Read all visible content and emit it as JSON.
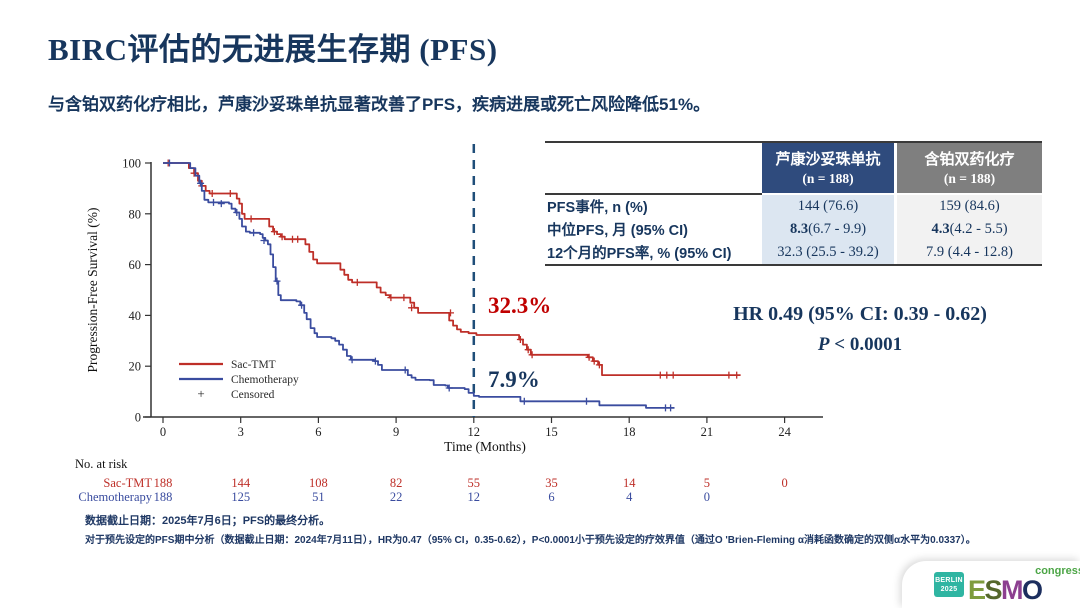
{
  "slide": {
    "title": "BIRC评估的无进展生存期 (PFS)",
    "subtitle": "与含铂双药化疗相比，芦康沙妥珠单抗显著改善了PFS，疾病进展或死亡风险降低51%。",
    "hr_line": "HR 0.49 (95% CI: 0.39 - 0.62)",
    "p_prefix": "P",
    "p_rest": " < 0.0001",
    "footnote1": "数据截止日期：2025年7月6日；PFS的最终分析。",
    "footnote2": "对于预先设定的PFS期中分析（数据截止日期：2024年7月11日），HR为0.47（95% CI，0.35-0.62），P<0.0001小于预先设定的疗效界值（通过O 'Brien-Fleming α消耗函数确定的双侧α水平为0.0337）。"
  },
  "summary_table": {
    "col_sac_header_line1": "芦康沙妥珠单抗",
    "col_sac_header_line2": "(n = 188)",
    "col_chemo_header_line1": "含铂双药化疗",
    "col_chemo_header_line2": "(n = 188)",
    "rows": [
      {
        "label": "PFS事件, n (%)",
        "sac_bold": "",
        "sac_rest": "144 (76.6)",
        "chemo_bold": "",
        "chemo_rest": "159 (84.6)"
      },
      {
        "label": "中位PFS, 月 (95% CI)",
        "sac_bold": "8.3",
        "sac_rest": " (6.7 - 9.9)",
        "chemo_bold": "4.3",
        "chemo_rest": " (4.2 - 5.5)"
      },
      {
        "label": "12个月的PFS率, % (95% CI)",
        "sac_bold": "",
        "sac_rest": "32.3 (25.5 - 39.2)",
        "chemo_bold": "",
        "chemo_rest": "7.9 (4.4 - 12.8)"
      }
    ]
  },
  "chart_data": {
    "type": "line",
    "subtype": "kaplan-meier-step",
    "xlabel": "Time (Months)",
    "ylabel": "Progression-Free Survival (%)",
    "xlim": [
      0,
      25
    ],
    "xticks": [
      0,
      3,
      6,
      9,
      12,
      15,
      18,
      21,
      24
    ],
    "ylim": [
      0,
      100
    ],
    "yticks": [
      0,
      20,
      40,
      60,
      80,
      100
    ],
    "grid": false,
    "landmark_line": {
      "x": 12,
      "style": "dashed",
      "color": "#1F4E79"
    },
    "annotations": [
      {
        "text": "32.3%",
        "color": "#C00000",
        "series": "Sac-TMT",
        "at_month": 12
      },
      {
        "text": "7.9%",
        "color": "#17365D",
        "series": "Chemotherapy",
        "at_month": 12
      }
    ],
    "legend": {
      "position": "lower-left-inside",
      "entries": [
        "Sac-TMT",
        "Chemotherapy",
        "Censored"
      ]
    },
    "series": [
      {
        "name": "Sac-TMT",
        "color": "#BE2F28",
        "points": [
          [
            0,
            100
          ],
          [
            0.85,
            100
          ],
          [
            1.0,
            98
          ],
          [
            1.2,
            96
          ],
          [
            1.35,
            93
          ],
          [
            1.5,
            91
          ],
          [
            1.65,
            89
          ],
          [
            1.8,
            88
          ],
          [
            2.7,
            88
          ],
          [
            2.85,
            86
          ],
          [
            2.95,
            84
          ],
          [
            3.05,
            80
          ],
          [
            3.15,
            78
          ],
          [
            3.95,
            78
          ],
          [
            4.1,
            75
          ],
          [
            4.25,
            73
          ],
          [
            4.4,
            72
          ],
          [
            4.55,
            71
          ],
          [
            4.7,
            70
          ],
          [
            5.35,
            70
          ],
          [
            5.5,
            68
          ],
          [
            5.65,
            65
          ],
          [
            5.8,
            62
          ],
          [
            5.95,
            60.5
          ],
          [
            6.7,
            60.5
          ],
          [
            6.85,
            58
          ],
          [
            7.0,
            56
          ],
          [
            7.15,
            54
          ],
          [
            7.3,
            53
          ],
          [
            8.1,
            53
          ],
          [
            8.25,
            51
          ],
          [
            8.4,
            49
          ],
          [
            8.6,
            48
          ],
          [
            8.75,
            47
          ],
          [
            9.4,
            47
          ],
          [
            9.55,
            45
          ],
          [
            9.7,
            43
          ],
          [
            9.85,
            41
          ],
          [
            10.9,
            41
          ],
          [
            11.05,
            38
          ],
          [
            11.2,
            36
          ],
          [
            11.35,
            34.5
          ],
          [
            11.5,
            33.5
          ],
          [
            11.8,
            33
          ],
          [
            12.1,
            32.3
          ],
          [
            13.6,
            32.3
          ],
          [
            13.75,
            30.5
          ],
          [
            13.9,
            28.5
          ],
          [
            14.05,
            26.5
          ],
          [
            14.2,
            24.5
          ],
          [
            16.2,
            24.5
          ],
          [
            16.4,
            23.5
          ],
          [
            16.6,
            22
          ],
          [
            16.8,
            20.5
          ],
          [
            16.95,
            16.5
          ],
          [
            22.3,
            16.5
          ]
        ],
        "censored": [
          [
            0.2,
            100
          ],
          [
            1.2,
            96
          ],
          [
            1.5,
            91
          ],
          [
            1.9,
            88
          ],
          [
            2.6,
            88
          ],
          [
            3.4,
            78
          ],
          [
            4.3,
            73
          ],
          [
            4.6,
            71
          ],
          [
            5.0,
            70
          ],
          [
            5.2,
            70
          ],
          [
            7.5,
            53
          ],
          [
            8.8,
            47
          ],
          [
            9.3,
            47
          ],
          [
            9.6,
            43
          ],
          [
            11.1,
            41
          ],
          [
            13.8,
            30.5
          ],
          [
            14.1,
            26.5
          ],
          [
            14.25,
            24.5
          ],
          [
            16.45,
            23.5
          ],
          [
            16.65,
            22
          ],
          [
            16.85,
            20.5
          ],
          [
            19.2,
            16.5
          ],
          [
            19.45,
            16.5
          ],
          [
            19.7,
            16.5
          ],
          [
            21.85,
            16.5
          ],
          [
            22.15,
            16.5
          ]
        ]
      },
      {
        "name": "Chemotherapy",
        "color": "#3A4C9F",
        "points": [
          [
            0,
            100
          ],
          [
            0.85,
            100
          ],
          [
            1.05,
            98
          ],
          [
            1.25,
            95
          ],
          [
            1.4,
            92
          ],
          [
            1.5,
            89
          ],
          [
            1.6,
            85.5
          ],
          [
            1.75,
            84.5
          ],
          [
            2.55,
            84
          ],
          [
            2.65,
            82
          ],
          [
            2.8,
            80.5
          ],
          [
            2.95,
            78
          ],
          [
            3.05,
            75
          ],
          [
            3.2,
            73
          ],
          [
            3.35,
            72.5
          ],
          [
            3.75,
            72
          ],
          [
            3.85,
            70.5
          ],
          [
            3.95,
            69.5
          ],
          [
            4.05,
            68
          ],
          [
            4.15,
            64
          ],
          [
            4.25,
            59
          ],
          [
            4.35,
            53.5
          ],
          [
            4.45,
            48
          ],
          [
            4.55,
            46
          ],
          [
            5.15,
            45.5
          ],
          [
            5.3,
            44
          ],
          [
            5.45,
            41
          ],
          [
            5.55,
            38.5
          ],
          [
            5.7,
            35
          ],
          [
            5.85,
            33
          ],
          [
            5.95,
            31.5
          ],
          [
            6.5,
            31
          ],
          [
            6.65,
            30
          ],
          [
            6.8,
            28.5
          ],
          [
            6.95,
            26.5
          ],
          [
            7.1,
            24
          ],
          [
            7.25,
            22.5
          ],
          [
            8.15,
            22
          ],
          [
            8.3,
            20.5
          ],
          [
            8.45,
            18.5
          ],
          [
            9.3,
            18.5
          ],
          [
            9.45,
            16.5
          ],
          [
            9.6,
            15.5
          ],
          [
            9.75,
            14.6
          ],
          [
            10.3,
            14.5
          ],
          [
            10.45,
            12.6
          ],
          [
            10.9,
            12.4
          ],
          [
            11.0,
            11.4
          ],
          [
            11.65,
            11
          ],
          [
            11.8,
            9.5
          ],
          [
            12.0,
            8.3
          ],
          [
            12.2,
            7.9
          ],
          [
            13.6,
            7.9
          ],
          [
            13.8,
            6.2
          ],
          [
            16.7,
            6.2
          ],
          [
            16.85,
            4.6
          ],
          [
            18.5,
            4.6
          ],
          [
            18.65,
            3.6
          ],
          [
            19.75,
            3.6
          ]
        ],
        "censored": [
          [
            0.25,
            100
          ],
          [
            1.45,
            92
          ],
          [
            1.95,
            84.5
          ],
          [
            2.25,
            84
          ],
          [
            2.85,
            80.5
          ],
          [
            3.5,
            72.5
          ],
          [
            3.9,
            69.5
          ],
          [
            4.4,
            53.5
          ],
          [
            5.35,
            44
          ],
          [
            7.3,
            22.5
          ],
          [
            8.2,
            22
          ],
          [
            9.35,
            18.5
          ],
          [
            11.05,
            11.4
          ],
          [
            13.95,
            6.2
          ],
          [
            16.35,
            6.2
          ],
          [
            19.4,
            3.6
          ],
          [
            19.6,
            3.6
          ]
        ]
      }
    ]
  },
  "risk_table": {
    "title": "No. at risk",
    "time_points": [
      0,
      3,
      6,
      9,
      12,
      15,
      18,
      21,
      24
    ],
    "rows": [
      {
        "label": "Sac-TMT",
        "color": "#BE2F28",
        "values": [
          188,
          144,
          108,
          82,
          55,
          35,
          14,
          5,
          0
        ]
      },
      {
        "label": "Chemotherapy",
        "color": "#3A4C9F",
        "values": [
          188,
          125,
          51,
          22,
          12,
          6,
          4,
          0
        ]
      }
    ]
  },
  "logo": {
    "badge_line1": "BERLIN",
    "badge_line2": "2025",
    "letters": [
      {
        "ch": "E",
        "color": "#7E9C3E"
      },
      {
        "ch": "S",
        "color": "#55682C"
      },
      {
        "ch": "M",
        "color": "#8C3F90"
      },
      {
        "ch": "O",
        "color": "#1C2E5E"
      }
    ],
    "congress": "congress"
  }
}
